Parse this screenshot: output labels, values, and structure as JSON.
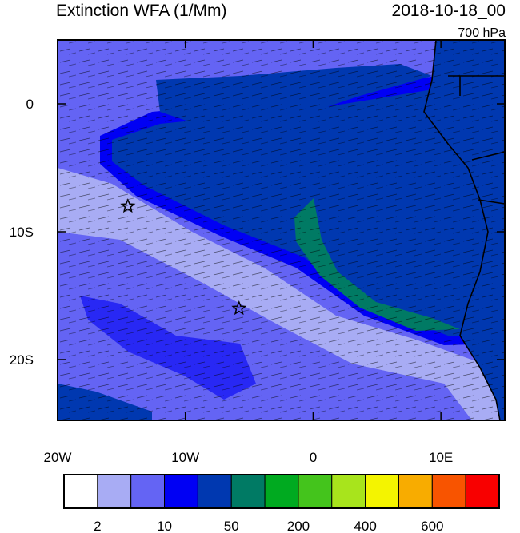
{
  "chart_data": {
    "type": "map",
    "title": "Extinction WFA (1/Mm)",
    "date": "2018-10-18_00",
    "level": "700 hPa",
    "xlim": [
      -20,
      15
    ],
    "ylim": [
      -24.75,
      5
    ],
    "xticks": [
      {
        "value": -20,
        "label": "20W"
      },
      {
        "value": -10,
        "label": "10W"
      },
      0,
      {
        "value": 10,
        "label": "10E"
      }
    ],
    "yticks": [
      0,
      {
        "value": -10,
        "label": "10S"
      },
      {
        "value": -20,
        "label": "20S"
      }
    ],
    "markers": {
      "x": [
        -14.5,
        -5.8
      ],
      "y": [
        -8,
        -16
      ]
    },
    "colorbar": {
      "colors": [
        "#ffffff",
        "#a8acf4",
        "#6464f4",
        "#0000f4",
        "#0038b0",
        "#007a64",
        "#00aa20",
        "#44c41c",
        "#a8e41c",
        "#f4f400",
        "#f8ac00",
        "#f85400",
        "#f80000"
      ],
      "labels": [
        2,
        10,
        50,
        200,
        400,
        600
      ]
    }
  }
}
